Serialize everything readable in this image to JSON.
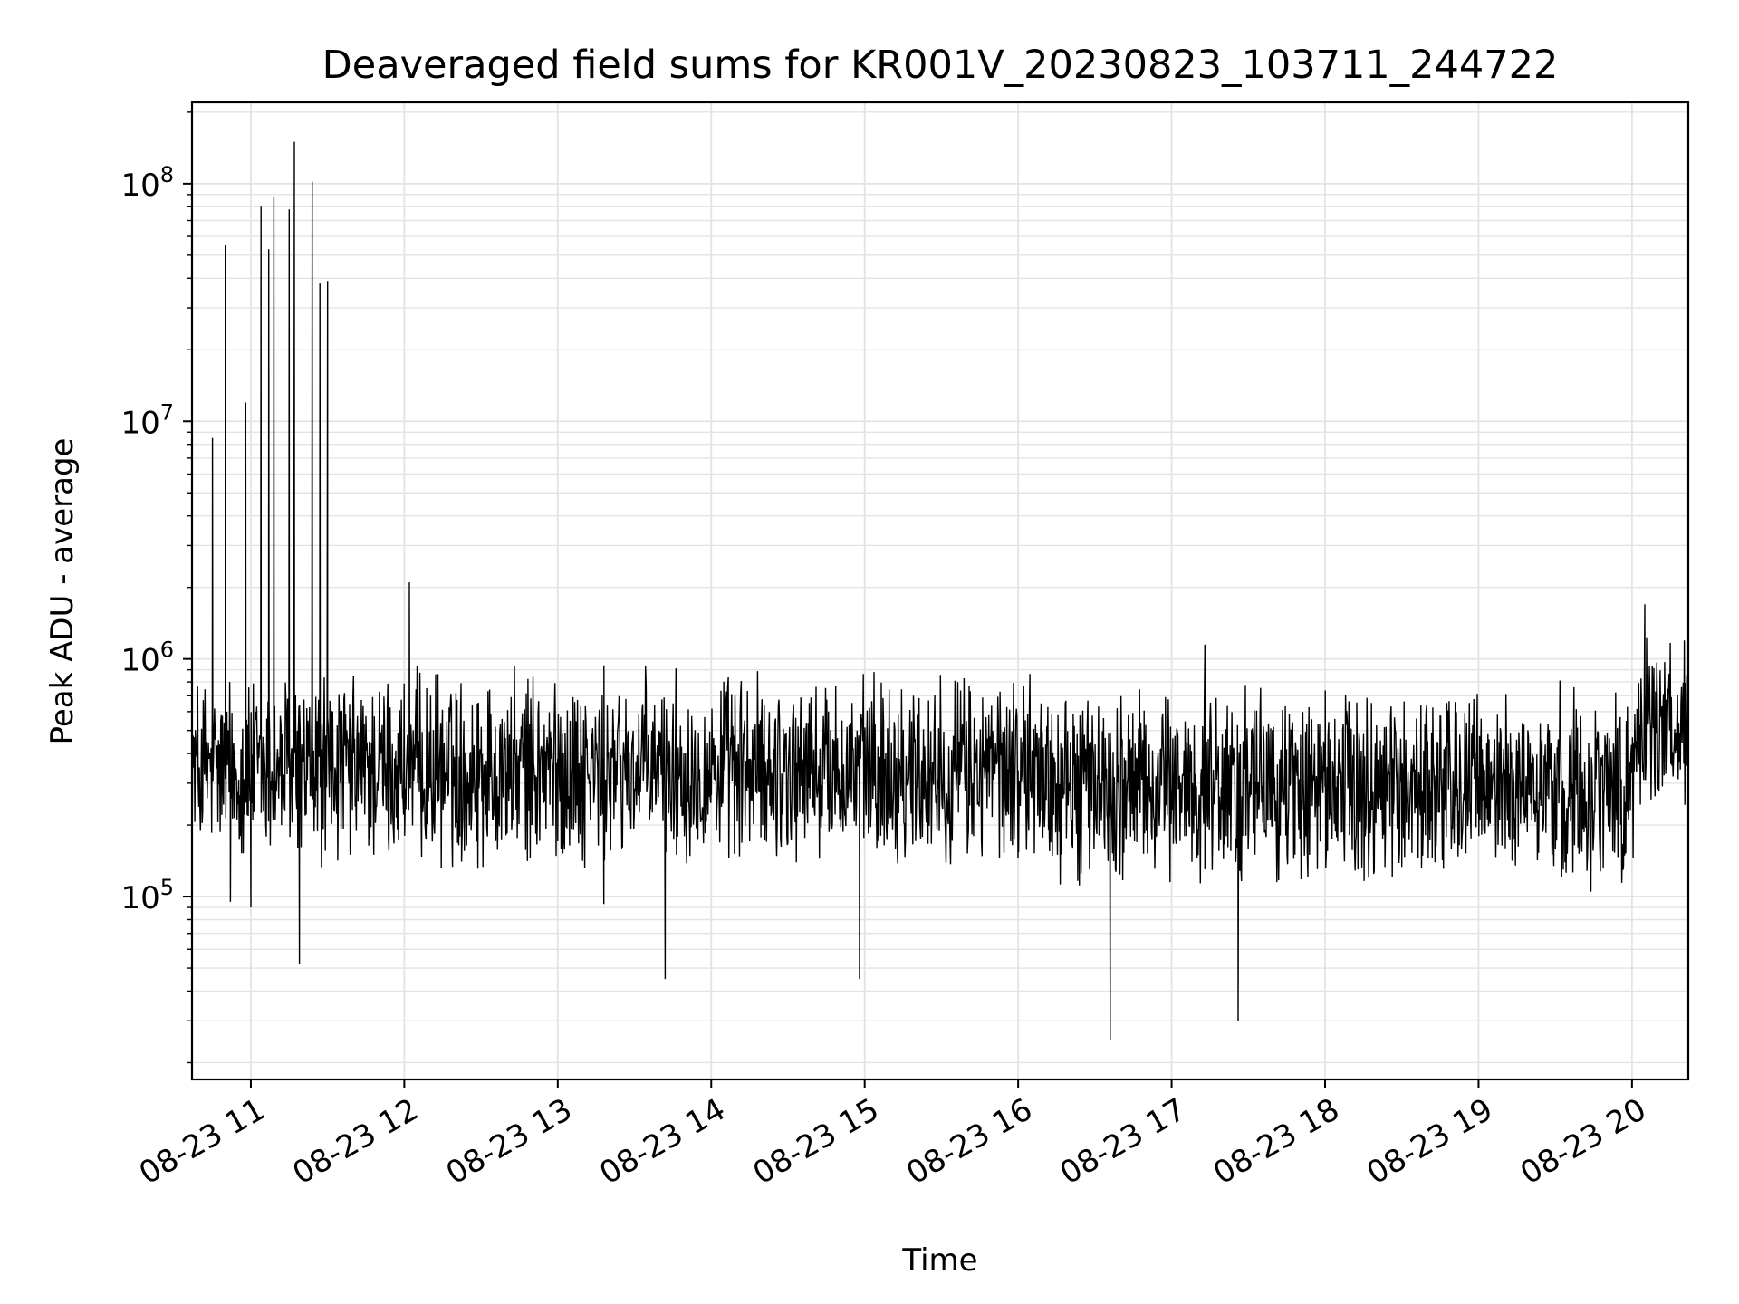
{
  "chart_data": {
    "type": "line",
    "title": "Deaveraged field sums for KR001V_20230823_103711_244722",
    "xlabel": "Time",
    "ylabel": "Peak ADU - average",
    "x_axis": {
      "type": "time",
      "range": [
        "08-23 10:37",
        "08-23 20:22"
      ],
      "tick_labels": [
        "08-23 11",
        "08-23 12",
        "08-23 13",
        "08-23 14",
        "08-23 15",
        "08-23 16",
        "08-23 17",
        "08-23 18",
        "08-23 19",
        "08-23 20"
      ],
      "tick_label_rotation": "30 degrees"
    },
    "y_axis": {
      "scale": "log",
      "range": [
        17000,
        220000000
      ],
      "tick_labels": [
        "10^5",
        "10^6",
        "10^7",
        "10^8"
      ],
      "major_tick_values": [
        100000,
        1000000,
        10000000,
        100000000
      ]
    },
    "grid": true,
    "legend": false,
    "line_color": "#000000",
    "grid_color": "#e3e3e3",
    "series": [
      {
        "x": [
          "08-23 10:37",
          "08-23 10:45",
          "08-23 10:50",
          "08-23 10:52",
          "08-23 10:58",
          "08-23 11:00",
          "08-23 11:04",
          "08-23 11:07",
          "08-23 11:09",
          "08-23 11:12",
          "08-23 11:15",
          "08-23 11:17",
          "08-23 11:19",
          "08-23 11:24",
          "08-23 11:27",
          "08-23 11:30",
          "08-23 11:35",
          "08-23 12:00",
          "08-23 12:02",
          "08-23 12:30",
          "08-23 13:00",
          "08-23 13:18",
          "08-23 13:42",
          "08-23 14:00",
          "08-23 14:30",
          "08-23 14:58",
          "08-23 15:30",
          "08-23 16:00",
          "08-23 16:20",
          "08-23 16:30",
          "08-23 16:36",
          "08-23 16:50",
          "08-23 17:00",
          "08-23 17:13",
          "08-23 17:26",
          "08-23 17:45",
          "08-23 18:00",
          "08-23 18:30",
          "08-23 19:00",
          "08-23 19:30",
          "08-23 20:00",
          "08-23 20:05",
          "08-23 20:22"
        ],
        "y": [
          450000,
          8500000,
          55000000,
          95000,
          12000000,
          90000,
          80000000,
          53000000,
          88000000,
          200000,
          78000000,
          150000000,
          52000,
          102000000,
          38000000,
          39000000,
          300000,
          400000,
          2100000,
          400000,
          380000,
          93000,
          45000,
          330000,
          310000,
          45000,
          330000,
          340000,
          300000,
          250000,
          25000,
          260000,
          280000,
          1150000,
          30000,
          300000,
          290000,
          300000,
          320000,
          310000,
          330000,
          1700000,
          500000
        ]
      }
    ]
  }
}
